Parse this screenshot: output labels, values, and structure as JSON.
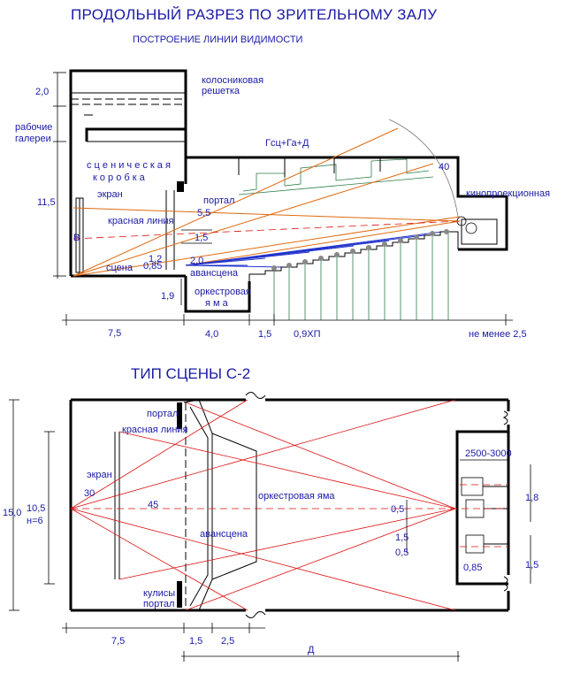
{
  "section": {
    "title": "ПРОДОЛЬНЫЙ  РАЗРЕЗ ПО ЗРИТЕЛЬНОМУ ЗАЛУ",
    "subtitle": "ПОСТРОЕНИЕ  ЛИНИИ ВИДИМОСТИ",
    "labels": {
      "grid": [
        "колосниковая",
        "решетка"
      ],
      "galleries": [
        "рабочие",
        "галереи"
      ],
      "stage_box": [
        "с ц е н и ч е с к а я",
        "к о р о б к а"
      ],
      "screen": "экран",
      "red_line": "красная линия",
      "portal": "портал",
      "stage": "сцена",
      "forestage": "авансцена",
      "orchestra_pit": [
        "оркестровая",
        "я м а"
      ],
      "projection": "кинопроекционная",
      "formula": "Гсц+Га+Д",
      "angle": "40",
      "letter_b": "В"
    },
    "dims": {
      "d2_0": "2,0",
      "d11_5": "11,5",
      "d5_5": "5,5",
      "d1_5": "1,5",
      "d1_2": "1,2",
      "d0_85": "0,85",
      "d2_0b": "2,0",
      "d1_9": "1,9",
      "bottom": [
        "7,5",
        "4,0",
        "1,5",
        "0,9ХП",
        "не менее 2,5"
      ]
    }
  },
  "plan": {
    "title": "ТИП СЦЕНЫ С-2",
    "labels": {
      "portal_top": "портал",
      "red_line": "красная линия",
      "screen": "экран",
      "angle30": "30",
      "angle45": "45",
      "orchestra_pit": "оркестровая яма",
      "forestage": "авансцена",
      "wings": [
        "кулисы",
        "портал"
      ],
      "range": "2500-3000",
      "d": "Д"
    },
    "dims": {
      "left_outer": "15,0",
      "left_inner": [
        "10,5",
        "н=6"
      ],
      "c0_5a": "0,5",
      "c1_5": "1,5",
      "c0_5b": "0,5",
      "c0_85": "0,85",
      "r1_8": "1,8",
      "r1_5": "1,5",
      "bottom": [
        "7,5",
        "1,5",
        "2,5"
      ]
    }
  }
}
